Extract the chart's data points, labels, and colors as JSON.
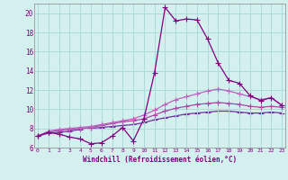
{
  "xlabel": "Windchill (Refroidissement éolien,°C)",
  "x": [
    0,
    1,
    2,
    3,
    4,
    5,
    6,
    7,
    8,
    9,
    10,
    11,
    12,
    13,
    14,
    15,
    16,
    17,
    18,
    19,
    20,
    21,
    22,
    23
  ],
  "curve1": [
    7.2,
    7.6,
    7.4,
    7.1,
    6.9,
    6.4,
    6.5,
    7.2,
    8.1,
    6.7,
    9.0,
    13.8,
    20.6,
    19.2,
    19.4,
    19.3,
    17.3,
    14.8,
    13.0,
    12.7,
    11.4,
    10.9,
    11.2,
    10.4
  ],
  "curve2": [
    7.2,
    7.7,
    7.9,
    8.0,
    8.1,
    8.2,
    8.4,
    8.6,
    8.8,
    9.0,
    9.4,
    9.9,
    10.5,
    11.0,
    11.3,
    11.6,
    11.9,
    12.1,
    11.9,
    11.6,
    11.3,
    11.0,
    11.2,
    10.4
  ],
  "curve3": [
    7.2,
    7.6,
    7.8,
    7.9,
    8.0,
    8.1,
    8.3,
    8.5,
    8.7,
    8.8,
    9.0,
    9.4,
    9.8,
    10.1,
    10.3,
    10.5,
    10.6,
    10.7,
    10.6,
    10.5,
    10.3,
    10.2,
    10.3,
    10.2
  ],
  "curve4": [
    7.2,
    7.5,
    7.6,
    7.7,
    7.9,
    8.0,
    8.1,
    8.2,
    8.3,
    8.4,
    8.6,
    8.9,
    9.1,
    9.3,
    9.5,
    9.6,
    9.7,
    9.8,
    9.8,
    9.7,
    9.6,
    9.6,
    9.7,
    9.6
  ],
  "color_main": "#800080",
  "color_line2": "#c060c0",
  "color_line3": "#a848a8",
  "color_line4": "#7030a0",
  "bg_color": "#d4f0ee",
  "grid_color": "#aadcda",
  "ylim": [
    6,
    21
  ],
  "yticks": [
    6,
    8,
    10,
    12,
    14,
    16,
    18,
    20
  ],
  "xlim": [
    0,
    23
  ],
  "xticks": [
    0,
    1,
    2,
    3,
    4,
    5,
    6,
    7,
    8,
    9,
    10,
    11,
    12,
    13,
    14,
    15,
    16,
    17,
    18,
    19,
    20,
    21,
    22,
    23
  ]
}
